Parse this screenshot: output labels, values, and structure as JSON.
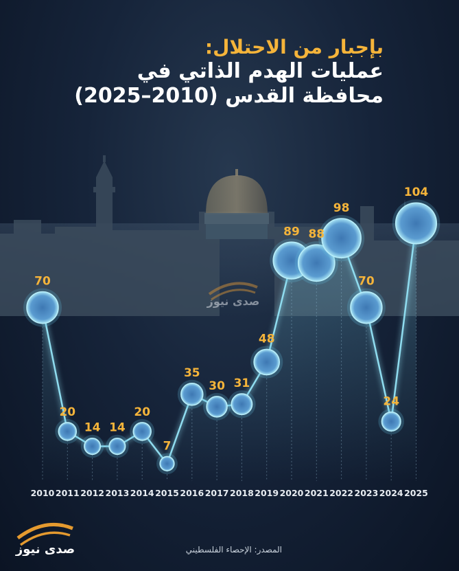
{
  "title": {
    "line1": "بإجبار من الاحتلال:",
    "line2": "عمليات الهدم الذاتي في",
    "line3": "محافظة القدس (2010–2025)"
  },
  "source": "المصدر: الإحصاء الفلسطيني",
  "logo_text": "صدى نيوز",
  "colors": {
    "background": "#16243a",
    "accent": "#f5b43a",
    "line": "#7fd0e8",
    "marker": "#5a90c0"
  },
  "chart_data": {
    "type": "line",
    "title": "عمليات الهدم الذاتي في محافظة القدس (2010–2025)",
    "xlabel": "",
    "ylabel": "",
    "x": [
      "2010",
      "2011",
      "2012",
      "2013",
      "2014",
      "2015",
      "2016",
      "2017",
      "2018",
      "2019",
      "2020",
      "2021",
      "2022",
      "2023",
      "2024",
      "2025"
    ],
    "values": [
      70,
      20,
      14,
      14,
      20,
      7,
      35,
      30,
      31,
      48,
      89,
      88,
      98,
      70,
      24,
      104
    ],
    "ylim": [
      0,
      110
    ],
    "grid": "vertical dotted lines per year",
    "markers": "glowing circles sized by value",
    "data_labels": true
  }
}
